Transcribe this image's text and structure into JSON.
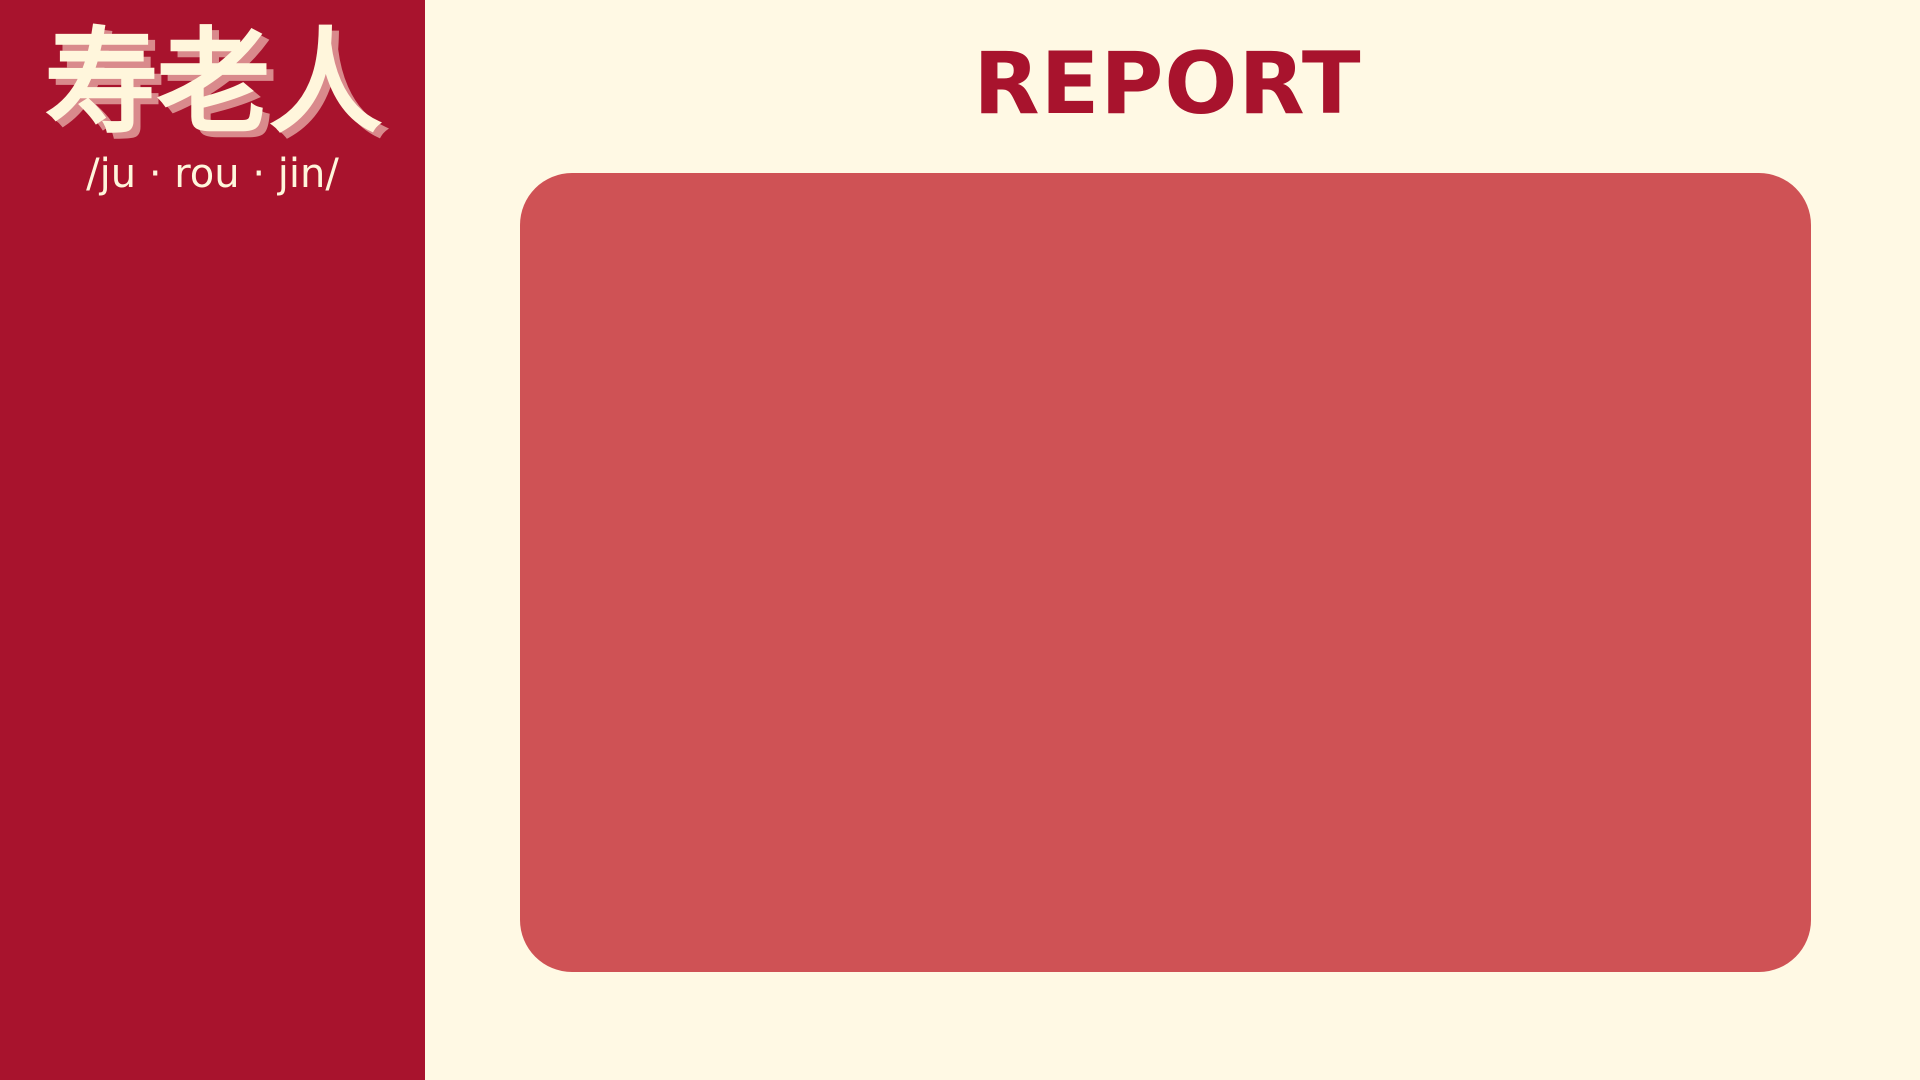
{
  "sidebar": {
    "logo_text": "寿老人",
    "romaji": "/ju · rou · jin/"
  },
  "main": {
    "title": "REPORT"
  },
  "colors": {
    "sidebar_bg": "#a8132d",
    "page_bg": "#fff9e4",
    "panel_bg": "#cf5255",
    "title_color": "#a8132d",
    "logo_color": "#fff6dc",
    "logo_shadow": "#d98a8c"
  }
}
